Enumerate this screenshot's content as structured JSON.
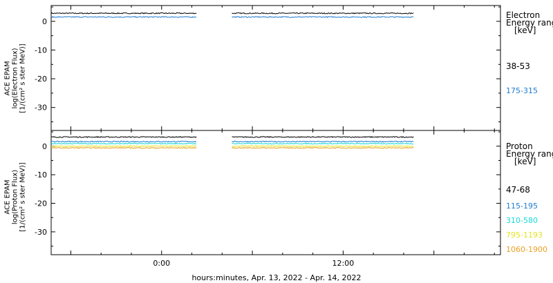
{
  "colors": {
    "black": "#000000",
    "blue": "#1f7bd0",
    "cyan": "#19d8d8",
    "yellow": "#e3e321",
    "orange": "#e9a020"
  },
  "x_axis": {
    "title": "hours:minutes, Apr. 13, 2022 - Apr. 14, 2022",
    "ticks": [
      {
        "hour": 0,
        "label": "0:00"
      },
      {
        "hour": 12,
        "label": "12:00"
      }
    ],
    "range_hours": [
      -7.3,
      22.4
    ]
  },
  "chart_data": [
    {
      "type": "line",
      "panel": "electron",
      "ylabel_lines": [
        "ACE EPAM",
        "log(Electron Flux)",
        "[1/(cm² s ster MeV)]"
      ],
      "ylim": [
        -38,
        5.5
      ],
      "yticks": [
        0,
        -10,
        -20,
        -30
      ],
      "legend_title_lines": [
        "Electron",
        "Energy range",
        "[keV]"
      ],
      "gaps_hours": [
        [
          2.3,
          4.6
        ],
        [
          16.7,
          22.4
        ]
      ],
      "series": [
        {
          "name": "38-53",
          "color": "#000000",
          "level": 2.8
        },
        {
          "name": "175-315",
          "color": "#1f7bd0",
          "level": 1.5
        }
      ]
    },
    {
      "type": "line",
      "panel": "proton",
      "ylabel_lines": [
        "ACE EPAM",
        "log(Proton Flux)",
        "[1/(cm² s ster MeV)]"
      ],
      "ylim": [
        -38,
        5.5
      ],
      "yticks": [
        0,
        -10,
        -20,
        -30
      ],
      "legend_title_lines": [
        "Proton",
        "Energy range",
        "[keV]"
      ],
      "gaps_hours": [
        [
          2.3,
          4.6
        ],
        [
          16.7,
          22.4
        ]
      ],
      "series": [
        {
          "name": "47-68",
          "color": "#000000",
          "level": 3.2
        },
        {
          "name": "115-195",
          "color": "#1f7bd0",
          "level": 1.6
        },
        {
          "name": "310-580",
          "color": "#19d8d8",
          "level": 0.9
        },
        {
          "name": "795-1193",
          "color": "#e3e321",
          "level": 0.0
        },
        {
          "name": "1060-1900",
          "color": "#e9a020",
          "level": -0.6
        }
      ]
    }
  ]
}
